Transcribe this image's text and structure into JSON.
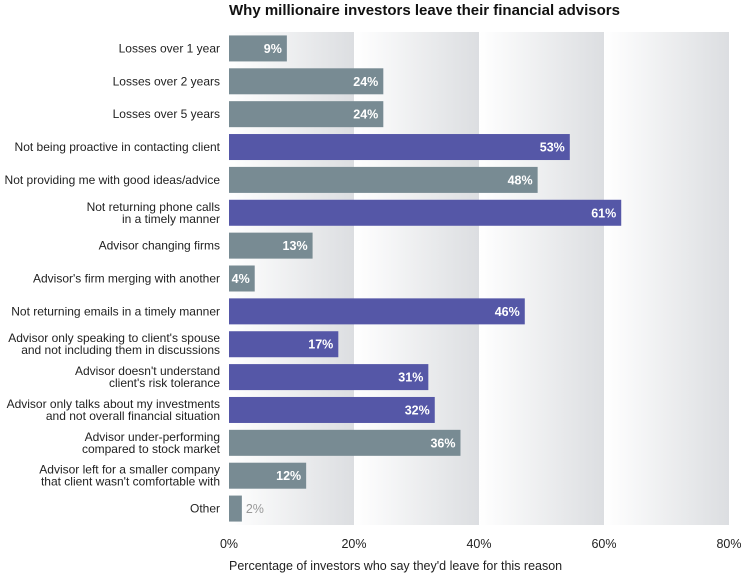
{
  "chart_data": {
    "type": "bar",
    "orientation": "horizontal",
    "title": "Why millionaire investors leave their financial advisors",
    "xlabel": "Percentage of investors who say they'd leave for this reason",
    "ylabel": "",
    "xlim": [
      0,
      80
    ],
    "xticks": [
      "0%",
      "20%",
      "40%",
      "60%",
      "80%"
    ],
    "xtick_values": [
      0,
      20,
      40,
      60,
      80
    ],
    "categories": [
      [
        "Losses over 1 year"
      ],
      [
        "Losses over 2 years"
      ],
      [
        "Losses over 5 years"
      ],
      [
        "Not being proactive in contacting client"
      ],
      [
        "Not providing me with good ideas/advice"
      ],
      [
        "Not returning phone calls",
        "in a timely manner"
      ],
      [
        "Advisor changing firms"
      ],
      [
        "Advisor's firm merging with another"
      ],
      [
        "Not returning emails in a timely manner"
      ],
      [
        "Advisor only speaking to client's spouse",
        "and not  including them in discussions"
      ],
      [
        "Advisor doesn't understand",
        "client's risk tolerance"
      ],
      [
        "Advisor only talks about my investments",
        "and not overall financial situation"
      ],
      [
        "Advisor under-performing",
        "compared to stock market"
      ],
      [
        "Advisor left for a smaller company",
        "that client wasn't comfortable with"
      ],
      [
        "Other"
      ]
    ],
    "values": [
      9,
      24,
      24,
      53,
      48,
      61,
      13,
      4,
      46,
      17,
      31,
      32,
      36,
      12,
      2
    ],
    "value_labels": [
      "9%",
      "24%",
      "24%",
      "53%",
      "48%",
      "61%",
      "13%",
      "4%",
      "46%",
      "17%",
      "31%",
      "32%",
      "36%",
      "12%",
      "2%"
    ],
    "highlight": [
      false,
      false,
      false,
      true,
      false,
      true,
      false,
      false,
      true,
      true,
      true,
      true,
      false,
      false,
      false
    ],
    "colors": {
      "default": "#788b93",
      "highlight": "#5557a7",
      "band_dark": "#dcdee1"
    },
    "grid": false
  }
}
